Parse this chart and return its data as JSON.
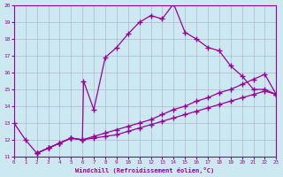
{
  "xlabel": "Windchill (Refroidissement éolien,°C)",
  "background_color": "#cce8f0",
  "grid_color": "#aaaacc",
  "line_color": "#990099",
  "xlim": [
    0,
    23
  ],
  "ylim": [
    11,
    20
  ],
  "xticks": [
    0,
    1,
    2,
    3,
    4,
    5,
    6,
    7,
    8,
    9,
    10,
    11,
    12,
    13,
    14,
    15,
    16,
    17,
    18,
    19,
    20,
    21,
    22,
    23
  ],
  "yticks": [
    11,
    12,
    13,
    14,
    15,
    16,
    17,
    18,
    19,
    20
  ],
  "line1_x": [
    0,
    1,
    2,
    3,
    4,
    5,
    6,
    6.1,
    7,
    8,
    9,
    10,
    11,
    12,
    13,
    14,
    15,
    16,
    17,
    18,
    19,
    20,
    21,
    22,
    23
  ],
  "line1_y": [
    13,
    12,
    11.2,
    11.5,
    11.8,
    12.1,
    12.0,
    15.5,
    13.8,
    16.9,
    17.5,
    18.3,
    19.0,
    19.4,
    19.2,
    20.1,
    18.4,
    18.0,
    17.5,
    17.3,
    16.4,
    15.8,
    15.0,
    15.0,
    14.7
  ],
  "line2_x": [
    2,
    3,
    4,
    5,
    6,
    7,
    8,
    9,
    10,
    11,
    12,
    13,
    14,
    15,
    16,
    17,
    18,
    19,
    20,
    21,
    22,
    23
  ],
  "line2_y": [
    11.2,
    11.5,
    11.8,
    12.1,
    12.0,
    12.2,
    12.4,
    12.6,
    12.8,
    13.0,
    13.2,
    13.5,
    13.8,
    14.0,
    14.3,
    14.5,
    14.8,
    15.0,
    15.3,
    15.6,
    15.9,
    14.7
  ],
  "line3_x": [
    2,
    3,
    4,
    5,
    6,
    7,
    8,
    9,
    10,
    11,
    12,
    13,
    14,
    15,
    16,
    17,
    18,
    19,
    20,
    21,
    22,
    23
  ],
  "line3_y": [
    11.2,
    11.5,
    11.8,
    12.1,
    12.0,
    12.1,
    12.2,
    12.3,
    12.5,
    12.7,
    12.9,
    13.1,
    13.3,
    13.5,
    13.7,
    13.9,
    14.1,
    14.3,
    14.5,
    14.7,
    14.9,
    14.7
  ]
}
